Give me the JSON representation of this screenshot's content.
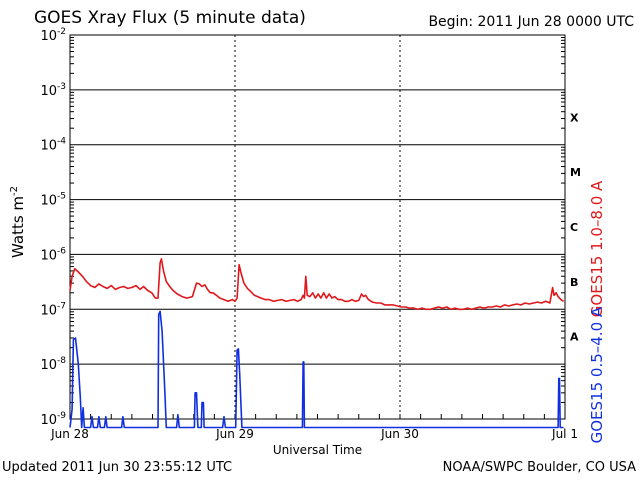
{
  "title": "GOES Xray Flux (5 minute data)",
  "begin_text": "Begin:  2011 Jun 28 0000 UTC",
  "updated_text": "Updated 2011 Jun 30 23:55:12 UTC",
  "credit_text": "NOAA/SWPC Boulder, CO USA",
  "chart_data": {
    "type": "line",
    "title": "GOES Xray Flux (5 minute data)",
    "xlabel": "Universal Time",
    "ylabel": "Watts m",
    "ylabel_sup": "-2",
    "yscale": "log",
    "ylim": [
      1e-09,
      0.01
    ],
    "xlim": [
      0,
      72
    ],
    "x_unit": "hours since 2011 Jun 28 0000 UTC",
    "x_ticks": [
      {
        "x": 0,
        "label": "Jun 28"
      },
      {
        "x": 24,
        "label": "Jun 29"
      },
      {
        "x": 48,
        "label": "Jun 30"
      },
      {
        "x": 72,
        "label": "Jul 1"
      }
    ],
    "y_ticks": [
      {
        "exp": -2,
        "base": "10",
        "sup": "-2"
      },
      {
        "exp": -3,
        "base": "10",
        "sup": "-3"
      },
      {
        "exp": -4,
        "base": "10",
        "sup": "-4"
      },
      {
        "exp": -5,
        "base": "10",
        "sup": "-5"
      },
      {
        "exp": -6,
        "base": "10",
        "sup": "-6"
      },
      {
        "exp": -7,
        "base": "10",
        "sup": "-7"
      },
      {
        "exp": -8,
        "base": "10",
        "sup": "-8"
      },
      {
        "exp": -9,
        "base": "10",
        "sup": "-9"
      }
    ],
    "flare_classes": [
      {
        "label": "X",
        "exp": -3.5
      },
      {
        "label": "M",
        "exp": -4.5
      },
      {
        "label": "C",
        "exp": -5.5
      },
      {
        "label": "B",
        "exp": -6.5
      },
      {
        "label": "A",
        "exp": -7.5
      }
    ],
    "grid": true,
    "series": [
      {
        "name": "GOES15 1.0–8.0 A",
        "color": "#e0181c",
        "points": [
          [
            0.0,
            2.2e-07
          ],
          [
            0.3,
            4e-07
          ],
          [
            0.7,
            5.5e-07
          ],
          [
            1.2,
            4.8e-07
          ],
          [
            1.8,
            4e-07
          ],
          [
            2.4,
            3.2e-07
          ],
          [
            3.0,
            2.7e-07
          ],
          [
            3.6,
            2.5e-07
          ],
          [
            4.2,
            2.9e-07
          ],
          [
            4.8,
            2.6e-07
          ],
          [
            5.4,
            2.4e-07
          ],
          [
            6.0,
            2.7e-07
          ],
          [
            6.6,
            2.3e-07
          ],
          [
            7.2,
            2.5e-07
          ],
          [
            7.8,
            2.6e-07
          ],
          [
            8.4,
            2.4e-07
          ],
          [
            9.0,
            2.5e-07
          ],
          [
            9.6,
            2.7e-07
          ],
          [
            10.2,
            2.3e-07
          ],
          [
            10.7,
            2.6e-07
          ],
          [
            11.3,
            2.2e-07
          ],
          [
            11.9,
            2e-07
          ],
          [
            12.4,
            1.6e-07
          ],
          [
            12.8,
            1.6e-07
          ],
          [
            13.1,
            7e-07
          ],
          [
            13.3,
            8.3e-07
          ],
          [
            13.6,
            5e-07
          ],
          [
            14.0,
            3.2e-07
          ],
          [
            14.5,
            2.6e-07
          ],
          [
            15.0,
            2.2e-07
          ],
          [
            15.6,
            1.9e-07
          ],
          [
            16.3,
            1.7e-07
          ],
          [
            17.0,
            1.6e-07
          ],
          [
            17.8,
            1.7e-07
          ],
          [
            18.4,
            3e-07
          ],
          [
            18.8,
            2.9e-07
          ],
          [
            19.2,
            2.6e-07
          ],
          [
            19.6,
            2.8e-07
          ],
          [
            20.0,
            2.3e-07
          ],
          [
            20.4,
            2e-07
          ],
          [
            20.8,
            2e-07
          ],
          [
            21.3,
            1.8e-07
          ],
          [
            21.8,
            1.6e-07
          ],
          [
            22.4,
            1.5e-07
          ],
          [
            23.0,
            1.4e-07
          ],
          [
            23.6,
            1.5e-07
          ],
          [
            24.0,
            1.4e-07
          ],
          [
            24.3,
            1.6e-07
          ],
          [
            24.6,
            6.5e-07
          ],
          [
            24.9,
            4.5e-07
          ],
          [
            25.3,
            3e-07
          ],
          [
            25.8,
            2.4e-07
          ],
          [
            26.3,
            2.1e-07
          ],
          [
            26.8,
            1.8e-07
          ],
          [
            27.3,
            1.7e-07
          ],
          [
            27.8,
            1.6e-07
          ],
          [
            28.4,
            1.5e-07
          ],
          [
            29.0,
            1.5e-07
          ],
          [
            29.6,
            1.4e-07
          ],
          [
            30.2,
            1.45e-07
          ],
          [
            30.8,
            1.5e-07
          ],
          [
            31.4,
            1.4e-07
          ],
          [
            32.0,
            1.45e-07
          ],
          [
            32.6,
            1.5e-07
          ],
          [
            33.1,
            1.4e-07
          ],
          [
            33.6,
            1.5e-07
          ],
          [
            33.9,
            1.8e-07
          ],
          [
            34.1,
            1.6e-07
          ],
          [
            34.3,
            4e-07
          ],
          [
            34.5,
            1.8e-07
          ],
          [
            34.9,
            1.7e-07
          ],
          [
            35.3,
            2e-07
          ],
          [
            35.7,
            1.6e-07
          ],
          [
            36.1,
            1.9e-07
          ],
          [
            36.5,
            1.6e-07
          ],
          [
            36.9,
            2e-07
          ],
          [
            37.3,
            1.6e-07
          ],
          [
            37.7,
            1.9e-07
          ],
          [
            38.1,
            1.6e-07
          ],
          [
            38.5,
            1.7e-07
          ],
          [
            39.0,
            1.5e-07
          ],
          [
            39.5,
            1.5e-07
          ],
          [
            40.0,
            1.4e-07
          ],
          [
            40.5,
            1.4e-07
          ],
          [
            41.0,
            1.5e-07
          ],
          [
            41.5,
            1.4e-07
          ],
          [
            42.0,
            1.45e-07
          ],
          [
            42.4,
            1.9e-07
          ],
          [
            42.7,
            1.7e-07
          ],
          [
            43.0,
            1.8e-07
          ],
          [
            43.4,
            1.5e-07
          ],
          [
            44.0,
            1.35e-07
          ],
          [
            44.6,
            1.3e-07
          ],
          [
            45.2,
            1.3e-07
          ],
          [
            45.8,
            1.2e-07
          ],
          [
            46.4,
            1.2e-07
          ],
          [
            47.0,
            1.2e-07
          ],
          [
            47.6,
            1.15e-07
          ],
          [
            48.2,
            1.1e-07
          ],
          [
            48.8,
            1.1e-07
          ],
          [
            49.4,
            1.05e-07
          ],
          [
            50.0,
            1.05e-07
          ],
          [
            50.6,
            1e-07
          ],
          [
            51.2,
            1.05e-07
          ],
          [
            51.8,
            1e-07
          ],
          [
            52.4,
            1e-07
          ],
          [
            53.0,
            1.05e-07
          ],
          [
            53.6,
            1.1e-07
          ],
          [
            54.2,
            1.05e-07
          ],
          [
            54.8,
            1.1e-07
          ],
          [
            55.4,
            1e-07
          ],
          [
            56.0,
            1.05e-07
          ],
          [
            56.6,
            1e-07
          ],
          [
            57.2,
            1e-07
          ],
          [
            57.8,
            1.05e-07
          ],
          [
            58.4,
            1e-07
          ],
          [
            59.0,
            1.05e-07
          ],
          [
            59.6,
            1.1e-07
          ],
          [
            60.2,
            1.05e-07
          ],
          [
            60.8,
            1.1e-07
          ],
          [
            61.4,
            1.1e-07
          ],
          [
            62.0,
            1.15e-07
          ],
          [
            62.6,
            1.1e-07
          ],
          [
            63.2,
            1.2e-07
          ],
          [
            63.8,
            1.15e-07
          ],
          [
            64.4,
            1.2e-07
          ],
          [
            65.0,
            1.25e-07
          ],
          [
            65.6,
            1.2e-07
          ],
          [
            66.2,
            1.3e-07
          ],
          [
            66.8,
            1.25e-07
          ],
          [
            67.4,
            1.3e-07
          ],
          [
            68.0,
            1.35e-07
          ],
          [
            68.6,
            1.3e-07
          ],
          [
            69.2,
            1.4e-07
          ],
          [
            69.8,
            1.3e-07
          ],
          [
            70.2,
            2.5e-07
          ],
          [
            70.4,
            1.8e-07
          ],
          [
            70.7,
            2e-07
          ],
          [
            71.0,
            1.7e-07
          ],
          [
            71.4,
            1.5e-07
          ],
          [
            71.8,
            1.4e-07
          ]
        ]
      },
      {
        "name": "GOES15 0.5–4.0 A",
        "color": "#1030e0",
        "points": [
          [
            0.0,
            7e-10
          ],
          [
            0.3,
            1.5e-09
          ],
          [
            0.5,
            2.8e-08
          ],
          [
            0.8,
            3e-08
          ],
          [
            1.2,
            1e-08
          ],
          [
            1.5,
            2.5e-09
          ],
          [
            1.7,
            7e-10
          ],
          [
            1.9,
            1.6e-09
          ],
          [
            2.1,
            7e-10
          ],
          [
            3.0,
            7e-10
          ],
          [
            3.2,
            1.1e-09
          ],
          [
            3.4,
            7e-10
          ],
          [
            4.0,
            7e-10
          ],
          [
            4.2,
            1.1e-09
          ],
          [
            4.4,
            7e-10
          ],
          [
            5.0,
            7e-10
          ],
          [
            5.2,
            1.1e-09
          ],
          [
            5.4,
            7e-10
          ],
          [
            7.5,
            7e-10
          ],
          [
            7.7,
            1.1e-09
          ],
          [
            7.9,
            7e-10
          ],
          [
            12.8,
            7e-10
          ],
          [
            12.9,
            8e-08
          ],
          [
            13.1,
            9.2e-08
          ],
          [
            13.4,
            4e-08
          ],
          [
            13.8,
            3e-09
          ],
          [
            14.0,
            7e-10
          ],
          [
            15.5,
            7e-10
          ],
          [
            15.7,
            1.2e-09
          ],
          [
            15.9,
            7e-10
          ],
          [
            18.1,
            7e-10
          ],
          [
            18.2,
            3e-09
          ],
          [
            18.4,
            3e-09
          ],
          [
            18.6,
            7e-10
          ],
          [
            19.1,
            7e-10
          ],
          [
            19.2,
            2e-09
          ],
          [
            19.4,
            2e-09
          ],
          [
            19.5,
            7e-10
          ],
          [
            22.2,
            7e-10
          ],
          [
            22.4,
            1.1e-09
          ],
          [
            22.6,
            7e-10
          ],
          [
            24.1,
            7e-10
          ],
          [
            24.3,
            1.8e-08
          ],
          [
            24.5,
            1.9e-08
          ],
          [
            24.7,
            6e-09
          ],
          [
            25.0,
            7e-10
          ],
          [
            33.8,
            7e-10
          ],
          [
            33.9,
            1.1e-08
          ],
          [
            34.0,
            1.1e-08
          ],
          [
            34.1,
            7e-10
          ],
          [
            71.0,
            7e-10
          ],
          [
            71.1,
            5.5e-09
          ],
          [
            71.2,
            5.5e-09
          ],
          [
            71.3,
            7e-10
          ],
          [
            71.8,
            7e-10
          ]
        ]
      }
    ]
  }
}
